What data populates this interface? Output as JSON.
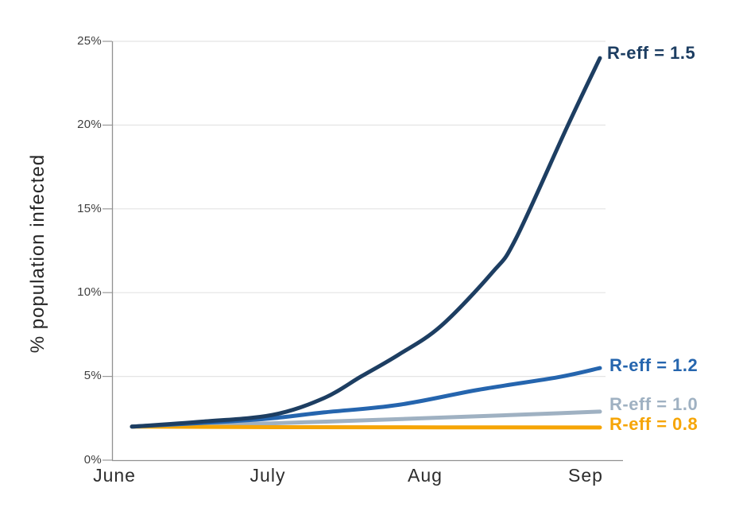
{
  "chart_data": {
    "type": "line",
    "title": "",
    "xlabel": "",
    "ylabel": "% population infected",
    "x_ticks": [
      "June",
      "July",
      "Aug",
      "Sep"
    ],
    "y_ticks": [
      "0%",
      "5%",
      "10%",
      "15%",
      "20%",
      "25%"
    ],
    "ylim": [
      0,
      25
    ],
    "grid": "horizontal gridlines at each 5% step",
    "legend_position": "labels at right end of each line",
    "points_format": "[fraction of x-axis from June to early Sep, percent of population infected]",
    "series": [
      {
        "label": "R-eff = 1.5",
        "color": "#1d3e62",
        "end_value_pct": 24.0,
        "points": [
          [
            0,
            2.0
          ],
          [
            0.15,
            2.3
          ],
          [
            0.3,
            2.7
          ],
          [
            0.41,
            3.7
          ],
          [
            0.49,
            5.0
          ],
          [
            0.57,
            6.3
          ],
          [
            0.66,
            8.0
          ],
          [
            0.77,
            11.2
          ],
          [
            0.82,
            13.2
          ],
          [
            0.93,
            19.9
          ],
          [
            1,
            24.0
          ]
        ]
      },
      {
        "label": "R-eff = 1.2",
        "color": "#2565ae",
        "end_value_pct": 5.5,
        "points": [
          [
            0,
            2.0
          ],
          [
            0.2,
            2.3
          ],
          [
            0.3,
            2.5
          ],
          [
            0.41,
            2.85
          ],
          [
            0.57,
            3.3
          ],
          [
            0.74,
            4.2
          ],
          [
            0.91,
            4.95
          ],
          [
            1,
            5.5
          ]
        ]
      },
      {
        "label": "R-eff = 1.0",
        "color": "#9fb1c2",
        "end_value_pct": 2.9,
        "points": [
          [
            0,
            2.0
          ],
          [
            0.3,
            2.2
          ],
          [
            0.57,
            2.45
          ],
          [
            0.91,
            2.8
          ],
          [
            1,
            2.9
          ]
        ]
      },
      {
        "label": "R-eff = 0.8",
        "color": "#f6a506",
        "end_value_pct": 1.95,
        "points": [
          [
            0,
            2.0
          ],
          [
            0.3,
            1.97
          ],
          [
            0.65,
            1.96
          ],
          [
            1,
            1.95
          ]
        ]
      }
    ]
  }
}
